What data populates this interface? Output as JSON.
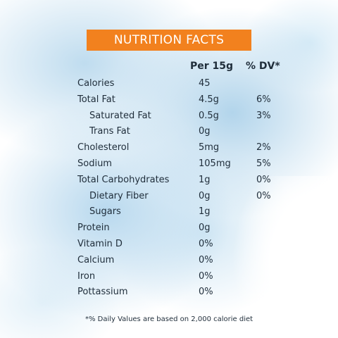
{
  "title": "NUTRITION FACTS",
  "headers": {
    "per": "Per 15g",
    "dv": "% DV*"
  },
  "rows": [
    {
      "name": "Calories",
      "amount": "45",
      "dv": "",
      "sub": false
    },
    {
      "name": "Total Fat",
      "amount": "4.5g",
      "dv": "6%",
      "sub": false
    },
    {
      "name": "Saturated Fat",
      "amount": "0.5g",
      "dv": "3%",
      "sub": true
    },
    {
      "name": "Trans Fat",
      "amount": "0g",
      "dv": "",
      "sub": true
    },
    {
      "name": "Cholesterol",
      "amount": "5mg",
      "dv": "2%",
      "sub": false
    },
    {
      "name": "Sodium",
      "amount": "105mg",
      "dv": "5%",
      "sub": false
    },
    {
      "name": "Total Carbohydrates",
      "amount": "1g",
      "dv": "0%",
      "sub": false
    },
    {
      "name": "Dietary Fiber",
      "amount": "0g",
      "dv": "0%",
      "sub": true
    },
    {
      "name": "Sugars",
      "amount": "1g",
      "dv": "",
      "sub": true
    },
    {
      "name": "Protein",
      "amount": "0g",
      "dv": "",
      "sub": false
    },
    {
      "name": "Vitamin D",
      "amount": "0%",
      "dv": "",
      "sub": false
    },
    {
      "name": "Calcium",
      "amount": "0%",
      "dv": "",
      "sub": false
    },
    {
      "name": "Iron",
      "amount": "0%",
      "dv": "",
      "sub": false
    },
    {
      "name": "Pottassium",
      "amount": "0%",
      "dv": "",
      "sub": false
    }
  ],
  "footnote": "*% Daily Values are based on 2,000 calorie diet",
  "colors": {
    "title_bar": "#f2811e",
    "text": "#1f2d3a"
  }
}
